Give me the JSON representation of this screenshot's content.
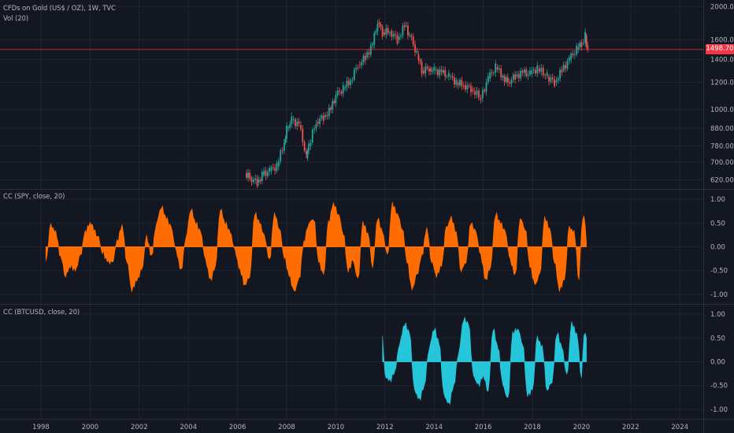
{
  "colors": {
    "background": "#131722",
    "grid": "#1f2430",
    "text": "#b2b5be",
    "candle_up": "#26a69a",
    "candle_down": "#ef5350",
    "price_line": "#f23645",
    "spy_fill": "#ff6d00",
    "btc_fill": "#26c6da"
  },
  "legends": {
    "main_title": "CFDs on Gold (US$ / OZ), 1W, TVC",
    "volume": "Vol (20)",
    "spy": "CC (SPY, close, 20)",
    "btc": "CC (BTCUSD, close, 20)"
  },
  "price_tag": "1498.70",
  "chart_data": [
    {
      "type": "candlestick",
      "title": "CFDs on Gold (US$ / OZ), 1W, TVC",
      "y_scale": "log",
      "y_ticks": [
        620,
        700,
        780,
        880,
        1000,
        1200,
        1400,
        1600,
        2000
      ],
      "y_tick_labels": [
        "620.00",
        "700.00",
        "780.00",
        "880.00",
        "1000.00",
        "1200.00",
        "1400.00",
        "1600.00",
        "2000.00"
      ],
      "ylim": [
        590,
        2050
      ],
      "last_price": 1498.7,
      "x": [
        2006.3,
        2006.5,
        2006.8,
        2007.0,
        2007.3,
        2007.6,
        2007.9,
        2008.0,
        2008.2,
        2008.5,
        2008.8,
        2008.9,
        2009.2,
        2009.5,
        2009.8,
        2010.0,
        2010.3,
        2010.6,
        2010.9,
        2011.2,
        2011.5,
        2011.7,
        2011.9,
        2012.2,
        2012.5,
        2012.8,
        2013.0,
        2013.3,
        2013.5,
        2013.8,
        2014.0,
        2014.3,
        2014.6,
        2014.9,
        2015.2,
        2015.5,
        2015.9,
        2016.2,
        2016.5,
        2016.8,
        2017.0,
        2017.3,
        2017.6,
        2017.9,
        2018.2,
        2018.6,
        2018.9,
        2019.2,
        2019.5,
        2019.8,
        2020.0,
        2020.15,
        2020.25
      ],
      "values": [
        650,
        630,
        610,
        640,
        660,
        680,
        800,
        880,
        930,
        900,
        720,
        780,
        920,
        950,
        1000,
        1100,
        1150,
        1220,
        1350,
        1420,
        1550,
        1800,
        1680,
        1700,
        1600,
        1760,
        1650,
        1450,
        1300,
        1320,
        1300,
        1280,
        1250,
        1200,
        1180,
        1150,
        1080,
        1230,
        1330,
        1250,
        1200,
        1250,
        1280,
        1270,
        1320,
        1250,
        1200,
        1300,
        1400,
        1500,
        1560,
        1650,
        1498.7
      ]
    },
    {
      "type": "area",
      "title": "CC (SPY, close, 20)",
      "ylim": [
        -1.1,
        1.1
      ],
      "y_ticks": [
        1.0,
        0.5,
        0.0,
        -0.5,
        -1.0
      ],
      "y_tick_labels": [
        "1.00",
        "0.50",
        "0.00",
        "-0.50",
        "-1.00"
      ],
      "x": [
        1998.2,
        1998.4,
        1998.6,
        1998.8,
        1999.0,
        1999.2,
        1999.4,
        1999.6,
        1999.8,
        2000.0,
        2000.3,
        2000.5,
        2000.7,
        2000.9,
        2001.1,
        2001.3,
        2001.5,
        2001.7,
        2001.9,
        2002.1,
        2002.3,
        2002.5,
        2002.7,
        2002.9,
        2003.1,
        2003.3,
        2003.5,
        2003.7,
        2003.9,
        2004.1,
        2004.3,
        2004.5,
        2004.7,
        2004.9,
        2005.1,
        2005.3,
        2005.5,
        2005.7,
        2005.9,
        2006.1,
        2006.3,
        2006.5,
        2006.7,
        2006.9,
        2007.1,
        2007.3,
        2007.5,
        2007.7,
        2007.9,
        2008.1,
        2008.3,
        2008.5,
        2008.7,
        2008.9,
        2009.1,
        2009.3,
        2009.5,
        2009.7,
        2009.9,
        2010.1,
        2010.3,
        2010.5,
        2010.7,
        2010.9,
        2011.1,
        2011.3,
        2011.5,
        2011.7,
        2011.9,
        2012.1,
        2012.3,
        2012.5,
        2012.7,
        2012.9,
        2013.1,
        2013.3,
        2013.5,
        2013.7,
        2013.9,
        2014.1,
        2014.3,
        2014.5,
        2014.7,
        2014.9,
        2015.1,
        2015.3,
        2015.5,
        2015.7,
        2015.9,
        2016.1,
        2016.3,
        2016.5,
        2016.7,
        2016.9,
        2017.1,
        2017.3,
        2017.5,
        2017.7,
        2017.9,
        2018.1,
        2018.3,
        2018.5,
        2018.7,
        2018.9,
        2019.1,
        2019.3,
        2019.5,
        2019.7,
        2019.9,
        2020.0,
        2020.1,
        2020.2
      ],
      "values": [
        -0.3,
        0.45,
        0.3,
        -0.2,
        -0.6,
        -0.4,
        -0.5,
        -0.2,
        0.3,
        0.5,
        0.25,
        -0.1,
        -0.3,
        -0.35,
        0.1,
        0.45,
        -0.3,
        -0.9,
        -0.7,
        -0.5,
        0.2,
        -0.2,
        0.5,
        0.85,
        0.6,
        0.4,
        -0.1,
        -0.5,
        0.2,
        0.8,
        0.5,
        0.3,
        -0.3,
        -0.7,
        -0.4,
        0.8,
        0.5,
        0.3,
        -0.1,
        -0.5,
        -0.8,
        -0.6,
        0.7,
        0.5,
        0.2,
        -0.3,
        0.7,
        0.4,
        -0.2,
        -0.6,
        -0.95,
        -0.7,
        0.1,
        0.5,
        0.6,
        -0.3,
        -0.6,
        0.5,
        0.9,
        0.7,
        0.3,
        -0.5,
        -0.3,
        -0.7,
        0.5,
        0.3,
        -0.4,
        0.6,
        0.3,
        -0.2,
        0.9,
        0.7,
        0.4,
        -0.3,
        -0.9,
        -0.6,
        -0.2,
        0.4,
        -0.3,
        -0.6,
        -0.4,
        0.4,
        0.6,
        0.3,
        -0.5,
        -0.3,
        0.5,
        0.3,
        -0.2,
        -0.7,
        -0.4,
        0.7,
        0.5,
        0.3,
        -0.3,
        -0.6,
        0.6,
        0.4,
        -0.4,
        -0.8,
        -0.6,
        0.6,
        0.4,
        -0.3,
        -0.9,
        -0.7,
        0.4,
        0.3,
        -0.7,
        0.4,
        0.7,
        0.1
      ]
    },
    {
      "type": "area",
      "title": "CC (BTCUSD, close, 20)",
      "ylim": [
        -1.1,
        1.1
      ],
      "y_ticks": [
        1.0,
        0.5,
        0.0,
        -0.5,
        -1.0
      ],
      "y_tick_labels": [
        "1.00",
        "0.50",
        "0.00",
        "-0.50",
        "-1.00"
      ],
      "x": [
        2011.9,
        2012.0,
        2012.2,
        2012.4,
        2012.6,
        2012.8,
        2013.0,
        2013.2,
        2013.4,
        2013.6,
        2013.8,
        2014.0,
        2014.2,
        2014.4,
        2014.6,
        2014.8,
        2015.0,
        2015.2,
        2015.4,
        2015.6,
        2015.8,
        2016.0,
        2016.2,
        2016.4,
        2016.6,
        2016.8,
        2017.0,
        2017.2,
        2017.4,
        2017.6,
        2017.8,
        2018.0,
        2018.2,
        2018.4,
        2018.6,
        2018.8,
        2019.0,
        2019.2,
        2019.4,
        2019.6,
        2019.8,
        2020.0,
        2020.1,
        2020.2
      ],
      "values": [
        0.55,
        -0.3,
        -0.4,
        -0.2,
        0.4,
        0.8,
        0.6,
        -0.6,
        -0.8,
        -0.5,
        0.3,
        0.7,
        0.4,
        -0.7,
        -0.9,
        -0.5,
        0.2,
        0.9,
        0.8,
        -0.3,
        -0.5,
        -0.3,
        -0.6,
        0.7,
        0.3,
        -0.5,
        -0.8,
        0.6,
        0.7,
        0.4,
        -0.7,
        -0.6,
        0.5,
        0.3,
        -0.6,
        -0.4,
        0.6,
        0.3,
        -0.3,
        0.8,
        0.6,
        -0.3,
        0.6,
        0.5
      ]
    }
  ],
  "x_axis": {
    "ticks": [
      "1998",
      "2000",
      "2002",
      "2004",
      "2006",
      "2008",
      "2010",
      "2012",
      "2014",
      "2016",
      "2018",
      "2020",
      "2022",
      "2024"
    ]
  }
}
